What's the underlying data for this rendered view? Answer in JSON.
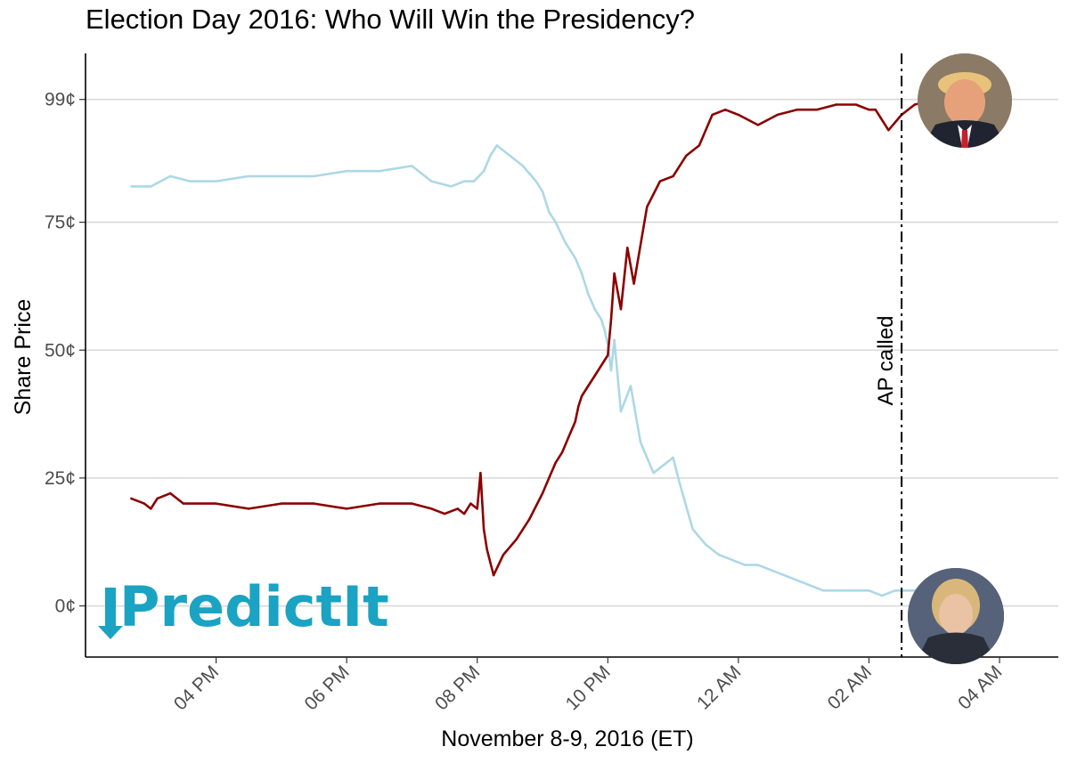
{
  "chart_data": {
    "type": "line",
    "title": "Election Day 2016: Who Will Win the Presidency?",
    "xlabel": "November 8-9, 2016 (ET)",
    "ylabel": "Share Price",
    "x_unit": "hours (ET, Nov 8)",
    "xlim": [
      14.0,
      28.9
    ],
    "ylim": [
      -10,
      108
    ],
    "grid": "horizontal",
    "x_ticks": [
      {
        "value": 16,
        "label": "04 PM"
      },
      {
        "value": 18,
        "label": "06 PM"
      },
      {
        "value": 20,
        "label": "08 PM"
      },
      {
        "value": 22,
        "label": "10 PM"
      },
      {
        "value": 24,
        "label": "12 AM"
      },
      {
        "value": 26,
        "label": "02 AM"
      },
      {
        "value": 28,
        "label": "04 AM"
      }
    ],
    "y_ticks": [
      {
        "value": 0,
        "label": "0¢"
      },
      {
        "value": 25,
        "label": "25¢"
      },
      {
        "value": 50,
        "label": "50¢"
      },
      {
        "value": 75,
        "label": "75¢"
      },
      {
        "value": 99,
        "label": "99¢"
      }
    ],
    "series": [
      {
        "color": "#8b0000",
        "x": [
          14.7,
          14.9,
          15.0,
          15.1,
          15.3,
          15.5,
          16.0,
          16.5,
          17.0,
          17.5,
          18.0,
          18.5,
          19.0,
          19.3,
          19.5,
          19.7,
          19.8,
          19.9,
          20.0,
          20.05,
          20.1,
          20.15,
          20.25,
          20.4,
          20.6,
          20.8,
          21.0,
          21.1,
          21.2,
          21.3,
          21.4,
          21.5,
          21.55,
          21.6,
          21.7,
          21.8,
          21.9,
          22.0,
          22.05,
          22.1,
          22.2,
          22.3,
          22.4,
          22.6,
          22.8,
          23.0,
          23.2,
          23.4,
          23.6,
          23.8,
          24.0,
          24.3,
          24.6,
          24.9,
          25.2,
          25.5,
          25.8,
          26.0,
          26.1,
          26.3,
          26.5,
          26.7,
          27.0,
          27.3
        ],
        "values": [
          21,
          20,
          19,
          21,
          22,
          20,
          20,
          19,
          20,
          20,
          19,
          20,
          20,
          19,
          18,
          19,
          18,
          20,
          19,
          26,
          15,
          11,
          6,
          10,
          13,
          17,
          22,
          25,
          28,
          30,
          33,
          36,
          39,
          41,
          43,
          45,
          47,
          49,
          56,
          65,
          58,
          70,
          63,
          78,
          83,
          84,
          88,
          90,
          96,
          97,
          96,
          94,
          96,
          97,
          97,
          98,
          98,
          97,
          97,
          93,
          96,
          98,
          99,
          98
        ]
      },
      {
        "color": "#add8e6",
        "x": [
          14.7,
          15.0,
          15.3,
          15.6,
          16.0,
          16.5,
          17.0,
          17.5,
          18.0,
          18.5,
          19.0,
          19.3,
          19.6,
          19.8,
          19.95,
          20.1,
          20.2,
          20.3,
          20.5,
          20.7,
          20.9,
          21.0,
          21.1,
          21.2,
          21.35,
          21.5,
          21.6,
          21.7,
          21.8,
          21.9,
          21.95,
          22.0,
          22.05,
          22.1,
          22.2,
          22.35,
          22.5,
          22.7,
          22.9,
          23.0,
          23.1,
          23.3,
          23.5,
          23.7,
          23.9,
          24.1,
          24.3,
          24.5,
          24.7,
          24.9,
          25.1,
          25.3,
          25.5,
          25.8,
          26.0,
          26.2,
          26.4,
          26.6,
          26.8,
          27.0,
          27.3
        ],
        "values": [
          82,
          82,
          84,
          83,
          83,
          84,
          84,
          84,
          85,
          85,
          86,
          83,
          82,
          83,
          83,
          85,
          88,
          90,
          88,
          86,
          83,
          81,
          77,
          75,
          71,
          68,
          65,
          61,
          58,
          56,
          54,
          51,
          46,
          52,
          38,
          43,
          32,
          26,
          28,
          29,
          24,
          15,
          12,
          10,
          9,
          8,
          8,
          7,
          6,
          5,
          4,
          3,
          3,
          3,
          3,
          2,
          3,
          3,
          3,
          4,
          4
        ]
      }
    ],
    "annotations": [
      {
        "x": 26.5,
        "label": "AP called",
        "style": "dashdot"
      }
    ],
    "images": [
      "trump-photo",
      "clinton-photo"
    ],
    "logo": "PredictIt"
  }
}
